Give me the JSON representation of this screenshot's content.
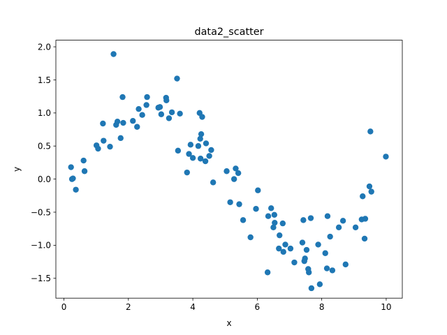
{
  "chart_data": {
    "type": "scatter",
    "title": "data2_scatter",
    "xlabel": "x",
    "ylabel": "y",
    "xlim": [
      -0.25,
      10.5
    ],
    "ylim": [
      -1.8,
      2.1
    ],
    "xticks": [
      0,
      2,
      4,
      6,
      8,
      10
    ],
    "yticks": [
      -1.5,
      -1.0,
      -0.5,
      0.0,
      0.5,
      1.0,
      1.5,
      2.0
    ],
    "xtick_labels": [
      "0",
      "2",
      "4",
      "6",
      "8",
      "10"
    ],
    "ytick_labels": [
      "−1.5",
      "−1.0",
      "−0.5",
      "0.0",
      "0.5",
      "1.0",
      "1.5",
      "2.0"
    ],
    "grid": false,
    "marker_color": "#1f77b4",
    "series": [
      {
        "x": [
          0.22,
          0.25,
          0.28,
          0.37,
          0.61,
          0.64,
          1.01,
          1.06,
          1.21,
          1.23,
          1.43,
          1.54,
          1.62,
          1.66,
          1.76,
          1.82,
          1.84,
          2.14,
          2.27,
          2.32,
          2.43,
          2.56,
          2.58,
          2.93,
          2.98,
          3.02,
          3.17,
          3.18,
          3.26,
          3.35,
          3.51,
          3.54,
          3.6,
          3.82,
          3.88,
          3.93,
          4.0,
          4.17,
          4.21,
          4.23,
          4.24,
          4.26,
          4.29,
          4.39,
          4.41,
          4.51,
          4.57,
          4.63,
          5.05,
          5.16,
          5.28,
          5.33,
          5.41,
          5.44,
          5.56,
          5.79,
          5.96,
          6.02,
          6.32,
          6.34,
          6.43,
          6.5,
          6.53,
          6.54,
          6.67,
          6.69,
          6.79,
          6.81,
          6.87,
          7.03,
          7.15,
          7.4,
          7.43,
          7.46,
          7.48,
          7.53,
          7.58,
          7.6,
          7.66,
          7.68,
          7.89,
          7.94,
          8.11,
          8.16,
          8.18,
          8.26,
          8.33,
          8.53,
          8.66,
          8.74,
          9.05,
          9.24,
          9.27,
          9.33,
          9.35,
          9.48,
          9.51,
          9.54,
          9.99
        ],
        "y": [
          0.18,
          0.0,
          0.01,
          -0.16,
          0.28,
          0.12,
          0.51,
          0.46,
          0.84,
          0.58,
          0.49,
          1.89,
          0.82,
          0.87,
          0.62,
          1.24,
          0.85,
          0.88,
          0.79,
          1.06,
          0.97,
          1.12,
          1.24,
          1.08,
          1.09,
          0.98,
          1.23,
          1.19,
          0.92,
          1.01,
          1.52,
          0.43,
          0.99,
          0.1,
          0.38,
          0.52,
          0.32,
          0.5,
          1.0,
          0.61,
          0.31,
          0.68,
          0.94,
          0.27,
          0.54,
          0.35,
          0.44,
          -0.05,
          0.12,
          -0.35,
          0.0,
          0.16,
          0.09,
          -0.38,
          -0.62,
          -0.88,
          -0.45,
          -0.17,
          -1.41,
          -0.56,
          -0.44,
          -0.73,
          -0.54,
          -0.66,
          -1.05,
          -0.85,
          -0.67,
          -1.1,
          -0.99,
          -1.05,
          -1.26,
          -0.96,
          -0.62,
          -1.24,
          -1.2,
          -1.07,
          -1.36,
          -1.41,
          -0.59,
          -1.65,
          -0.99,
          -1.59,
          -1.12,
          -1.35,
          -0.56,
          -0.87,
          -1.38,
          -0.73,
          -0.63,
          -1.29,
          -0.73,
          -0.61,
          -0.26,
          -0.9,
          -0.6,
          -0.11,
          0.72,
          -0.19,
          0.34
        ]
      }
    ]
  }
}
